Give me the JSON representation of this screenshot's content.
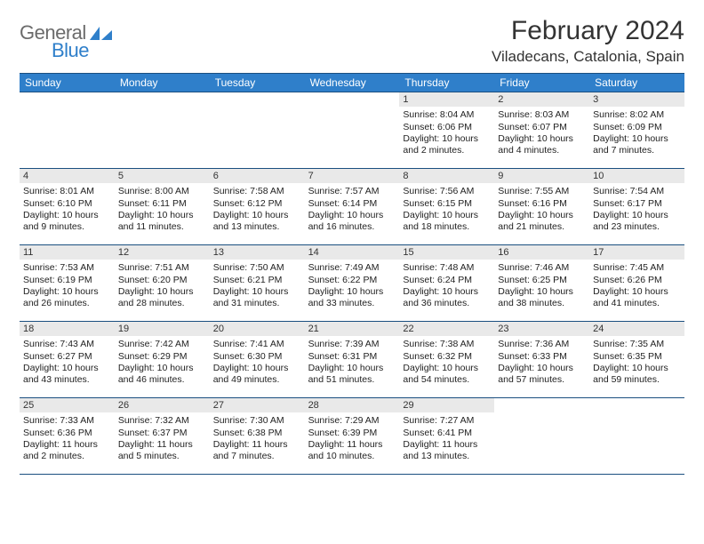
{
  "brand": {
    "name1": "General",
    "name2": "Blue"
  },
  "title": "February 2024",
  "location": "Viladecans, Catalonia, Spain",
  "colors": {
    "header_bg": "#2f7fca",
    "header_text": "#ffffff",
    "rule": "#1a4f80",
    "daynum_bg": "#e9e9e9",
    "body_text": "#222222",
    "logo_gray": "#6b6b6b",
    "logo_blue": "#2f7fca",
    "page_bg": "#ffffff"
  },
  "typography": {
    "month_fontsize": 30,
    "location_fontsize": 17,
    "dayhead_fontsize": 12,
    "cell_fontsize": 10.5,
    "daynum_fontsize": 11
  },
  "weekdays": [
    "Sunday",
    "Monday",
    "Tuesday",
    "Wednesday",
    "Thursday",
    "Friday",
    "Saturday"
  ],
  "blanks_before": 4,
  "days": [
    {
      "n": "1",
      "sunrise": "8:04 AM",
      "sunset": "6:06 PM",
      "daylight": "10 hours and 2 minutes."
    },
    {
      "n": "2",
      "sunrise": "8:03 AM",
      "sunset": "6:07 PM",
      "daylight": "10 hours and 4 minutes."
    },
    {
      "n": "3",
      "sunrise": "8:02 AM",
      "sunset": "6:09 PM",
      "daylight": "10 hours and 7 minutes."
    },
    {
      "n": "4",
      "sunrise": "8:01 AM",
      "sunset": "6:10 PM",
      "daylight": "10 hours and 9 minutes."
    },
    {
      "n": "5",
      "sunrise": "8:00 AM",
      "sunset": "6:11 PM",
      "daylight": "10 hours and 11 minutes."
    },
    {
      "n": "6",
      "sunrise": "7:58 AM",
      "sunset": "6:12 PM",
      "daylight": "10 hours and 13 minutes."
    },
    {
      "n": "7",
      "sunrise": "7:57 AM",
      "sunset": "6:14 PM",
      "daylight": "10 hours and 16 minutes."
    },
    {
      "n": "8",
      "sunrise": "7:56 AM",
      "sunset": "6:15 PM",
      "daylight": "10 hours and 18 minutes."
    },
    {
      "n": "9",
      "sunrise": "7:55 AM",
      "sunset": "6:16 PM",
      "daylight": "10 hours and 21 minutes."
    },
    {
      "n": "10",
      "sunrise": "7:54 AM",
      "sunset": "6:17 PM",
      "daylight": "10 hours and 23 minutes."
    },
    {
      "n": "11",
      "sunrise": "7:53 AM",
      "sunset": "6:19 PM",
      "daylight": "10 hours and 26 minutes."
    },
    {
      "n": "12",
      "sunrise": "7:51 AM",
      "sunset": "6:20 PM",
      "daylight": "10 hours and 28 minutes."
    },
    {
      "n": "13",
      "sunrise": "7:50 AM",
      "sunset": "6:21 PM",
      "daylight": "10 hours and 31 minutes."
    },
    {
      "n": "14",
      "sunrise": "7:49 AM",
      "sunset": "6:22 PM",
      "daylight": "10 hours and 33 minutes."
    },
    {
      "n": "15",
      "sunrise": "7:48 AM",
      "sunset": "6:24 PM",
      "daylight": "10 hours and 36 minutes."
    },
    {
      "n": "16",
      "sunrise": "7:46 AM",
      "sunset": "6:25 PM",
      "daylight": "10 hours and 38 minutes."
    },
    {
      "n": "17",
      "sunrise": "7:45 AM",
      "sunset": "6:26 PM",
      "daylight": "10 hours and 41 minutes."
    },
    {
      "n": "18",
      "sunrise": "7:43 AM",
      "sunset": "6:27 PM",
      "daylight": "10 hours and 43 minutes."
    },
    {
      "n": "19",
      "sunrise": "7:42 AM",
      "sunset": "6:29 PM",
      "daylight": "10 hours and 46 minutes."
    },
    {
      "n": "20",
      "sunrise": "7:41 AM",
      "sunset": "6:30 PM",
      "daylight": "10 hours and 49 minutes."
    },
    {
      "n": "21",
      "sunrise": "7:39 AM",
      "sunset": "6:31 PM",
      "daylight": "10 hours and 51 minutes."
    },
    {
      "n": "22",
      "sunrise": "7:38 AM",
      "sunset": "6:32 PM",
      "daylight": "10 hours and 54 minutes."
    },
    {
      "n": "23",
      "sunrise": "7:36 AM",
      "sunset": "6:33 PM",
      "daylight": "10 hours and 57 minutes."
    },
    {
      "n": "24",
      "sunrise": "7:35 AM",
      "sunset": "6:35 PM",
      "daylight": "10 hours and 59 minutes."
    },
    {
      "n": "25",
      "sunrise": "7:33 AM",
      "sunset": "6:36 PM",
      "daylight": "11 hours and 2 minutes."
    },
    {
      "n": "26",
      "sunrise": "7:32 AM",
      "sunset": "6:37 PM",
      "daylight": "11 hours and 5 minutes."
    },
    {
      "n": "27",
      "sunrise": "7:30 AM",
      "sunset": "6:38 PM",
      "daylight": "11 hours and 7 minutes."
    },
    {
      "n": "28",
      "sunrise": "7:29 AM",
      "sunset": "6:39 PM",
      "daylight": "11 hours and 10 minutes."
    },
    {
      "n": "29",
      "sunrise": "7:27 AM",
      "sunset": "6:41 PM",
      "daylight": "11 hours and 13 minutes."
    }
  ],
  "labels": {
    "sunrise": "Sunrise:",
    "sunset": "Sunset:",
    "daylight": "Daylight:"
  }
}
